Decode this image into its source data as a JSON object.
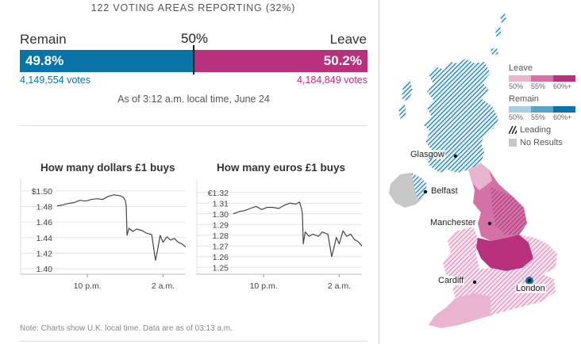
{
  "header": {
    "reporting": "122 VOTING AREAS REPORTING (32%)"
  },
  "result": {
    "remain_label": "Remain",
    "leave_label": "Leave",
    "midpoint_label": "50%",
    "remain_pct_text": "49.8%",
    "leave_pct_text": "50.2%",
    "remain_share": 0.498,
    "leave_share": 0.502,
    "remain_votes": "4,149,554 votes",
    "leave_votes": "4,184,849 votes",
    "as_of": "As of 3:12 a.m. local time, June 24",
    "colors": {
      "remain": "#0a74a8",
      "leave": "#b8317c"
    }
  },
  "chart_data": [
    {
      "type": "line",
      "title": "How many dollars £1 buys",
      "y_tick_labels": [
        "$1.50",
        "1.48",
        "1.46",
        "1.44",
        "1.42",
        "1.40"
      ],
      "y_ticks": [
        1.5,
        1.48,
        1.46,
        1.44,
        1.42,
        1.4
      ],
      "ylim": [
        1.395,
        1.505
      ],
      "x_tick_labels": [
        "10 p.m.",
        "2 a.m."
      ],
      "x_ticks": [
        22,
        26
      ],
      "xlim": [
        20.4,
        27.2
      ],
      "grid": true,
      "series": [
        {
          "x": [
            20.4,
            20.7,
            21.0,
            21.3,
            21.6,
            21.9,
            22.2,
            22.5,
            22.8,
            23.1,
            23.4,
            23.7,
            23.9,
            24.0,
            24.05,
            24.1,
            24.2,
            24.4,
            24.6,
            24.9,
            25.1,
            25.4,
            25.6,
            25.7,
            25.85,
            26.0,
            26.2,
            26.4,
            26.6,
            26.8,
            27.0,
            27.2
          ],
          "y": [
            1.481,
            1.482,
            1.484,
            1.485,
            1.488,
            1.487,
            1.489,
            1.49,
            1.489,
            1.493,
            1.495,
            1.494,
            1.492,
            1.488,
            1.481,
            1.443,
            1.452,
            1.448,
            1.451,
            1.449,
            1.446,
            1.444,
            1.411,
            1.423,
            1.443,
            1.434,
            1.441,
            1.437,
            1.439,
            1.434,
            1.432,
            1.428
          ]
        }
      ]
    },
    {
      "type": "line",
      "title": "How many euros £1 buys",
      "y_tick_labels": [
        "€1.32",
        "1.31",
        "1.30",
        "1.29",
        "1.28",
        "1.27",
        "1.26",
        "1.25"
      ],
      "y_ticks": [
        1.32,
        1.31,
        1.3,
        1.29,
        1.28,
        1.27,
        1.26,
        1.25
      ],
      "ylim": [
        1.245,
        1.325
      ],
      "x_tick_labels": [
        "10 p.m.",
        "2 a.m."
      ],
      "x_ticks": [
        22,
        26
      ],
      "xlim": [
        20.4,
        27.2
      ],
      "grid": true,
      "series": [
        {
          "x": [
            20.4,
            20.7,
            21.0,
            21.3,
            21.6,
            21.9,
            22.2,
            22.5,
            22.8,
            23.1,
            23.4,
            23.7,
            23.9,
            24.0,
            24.05,
            24.1,
            24.2,
            24.4,
            24.6,
            24.9,
            25.1,
            25.4,
            25.6,
            25.7,
            25.85,
            26.0,
            26.2,
            26.4,
            26.6,
            26.8,
            27.0,
            27.2
          ],
          "y": [
            1.3,
            1.302,
            1.303,
            1.305,
            1.307,
            1.304,
            1.306,
            1.306,
            1.305,
            1.308,
            1.31,
            1.309,
            1.311,
            1.305,
            1.3,
            1.272,
            1.283,
            1.279,
            1.281,
            1.279,
            1.283,
            1.281,
            1.26,
            1.267,
            1.278,
            1.272,
            1.284,
            1.279,
            1.281,
            1.276,
            1.274,
            1.27
          ]
        }
      ]
    }
  ],
  "note": "Note: Charts show U.K. local time. Data are as of 03:13 a.m.",
  "map": {
    "legend": {
      "leave_title": "Leave",
      "remain_title": "Remain",
      "thresholds": [
        "50%",
        "55%",
        "60%+"
      ],
      "leave_colors": [
        "#e8b4d0",
        "#d472a8",
        "#b8317c"
      ],
      "remain_colors": [
        "#a8cfe3",
        "#5ba5cb",
        "#0a74a8"
      ],
      "leading_label": "Leading",
      "no_results_label": "No Results"
    },
    "cities": {
      "glasgow": "Glasgow",
      "belfast": "Belfast",
      "manchester": "Manchester",
      "cardiff": "Cardiff",
      "london": "London"
    }
  }
}
